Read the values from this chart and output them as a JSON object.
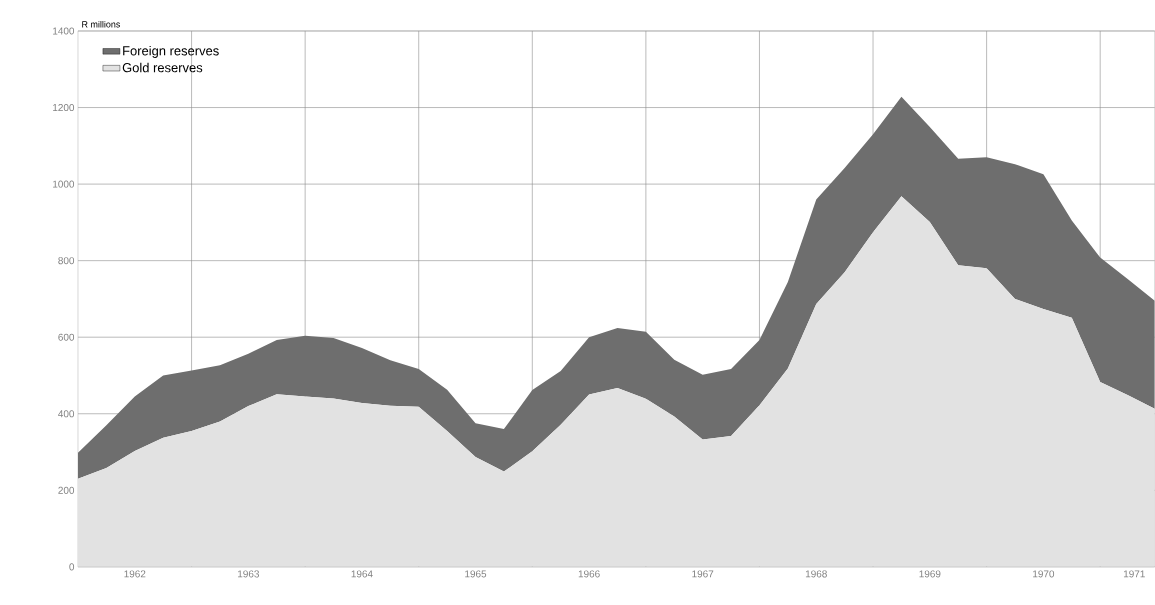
{
  "chart_data": {
    "type": "area",
    "stacked": true,
    "ylabel": "R millions",
    "x": [
      1962.0,
      1962.25,
      1962.5,
      1962.75,
      1963.0,
      1963.25,
      1963.5,
      1963.75,
      1964.0,
      1964.25,
      1964.5,
      1964.75,
      1965.0,
      1965.25,
      1965.5,
      1965.75,
      1966.0,
      1966.25,
      1966.5,
      1966.75,
      1967.0,
      1967.25,
      1967.5,
      1967.75,
      1968.0,
      1968.25,
      1968.5,
      1968.75,
      1969.0,
      1969.25,
      1969.5,
      1969.75,
      1970.0,
      1970.25,
      1970.5,
      1970.75,
      1971.0,
      1971.25,
      1971.48
    ],
    "series": [
      {
        "name": "Gold reserves",
        "color": "#e2e2e2",
        "values": [
          230,
          258,
          303,
          337,
          355,
          380,
          420,
          451,
          445,
          440,
          428,
          421,
          418,
          355,
          287,
          249,
          302,
          371,
          450,
          467,
          439,
          393,
          333,
          342,
          422,
          518,
          687,
          770,
          874,
          968,
          901,
          788,
          780,
          700,
          674,
          651,
          483,
          448,
          413
        ]
      },
      {
        "name": "Foreign reserves",
        "color": "#6e6e6e",
        "values": [
          68,
          112,
          142,
          163,
          158,
          147,
          137,
          142,
          159,
          158,
          144,
          119,
          99,
          108,
          88,
          111,
          160,
          141,
          150,
          157,
          175,
          148,
          169,
          175,
          171,
          226,
          273,
          272,
          256,
          260,
          248,
          278,
          290,
          352,
          352,
          254,
          325,
          302,
          282
        ]
      }
    ],
    "xlim": [
      1962,
      1971.48
    ],
    "xticks": [
      {
        "value": 1962.5,
        "label": "1962"
      },
      {
        "value": 1963,
        "label": null
      },
      {
        "value": 1963.5,
        "label": "1963"
      },
      {
        "value": 1964,
        "label": null
      },
      {
        "value": 1964.5,
        "label": "1964"
      },
      {
        "value": 1965,
        "label": null
      },
      {
        "value": 1965.5,
        "label": "1965"
      },
      {
        "value": 1966,
        "label": null
      },
      {
        "value": 1966.5,
        "label": "1966"
      },
      {
        "value": 1967,
        "label": null
      },
      {
        "value": 1967.5,
        "label": "1967"
      },
      {
        "value": 1968,
        "label": null
      },
      {
        "value": 1968.5,
        "label": "1968"
      },
      {
        "value": 1969,
        "label": null
      },
      {
        "value": 1969.5,
        "label": "1969"
      },
      {
        "value": 1970,
        "label": null
      },
      {
        "value": 1970.5,
        "label": "1970"
      },
      {
        "value": 1971,
        "label": null
      },
      {
        "value": 1971.3,
        "label": "1971"
      }
    ],
    "ylim": [
      0,
      1400
    ],
    "yticks": [
      0,
      200,
      400,
      600,
      800,
      1000,
      1200,
      1400
    ],
    "grid": true,
    "legend": "top left"
  }
}
